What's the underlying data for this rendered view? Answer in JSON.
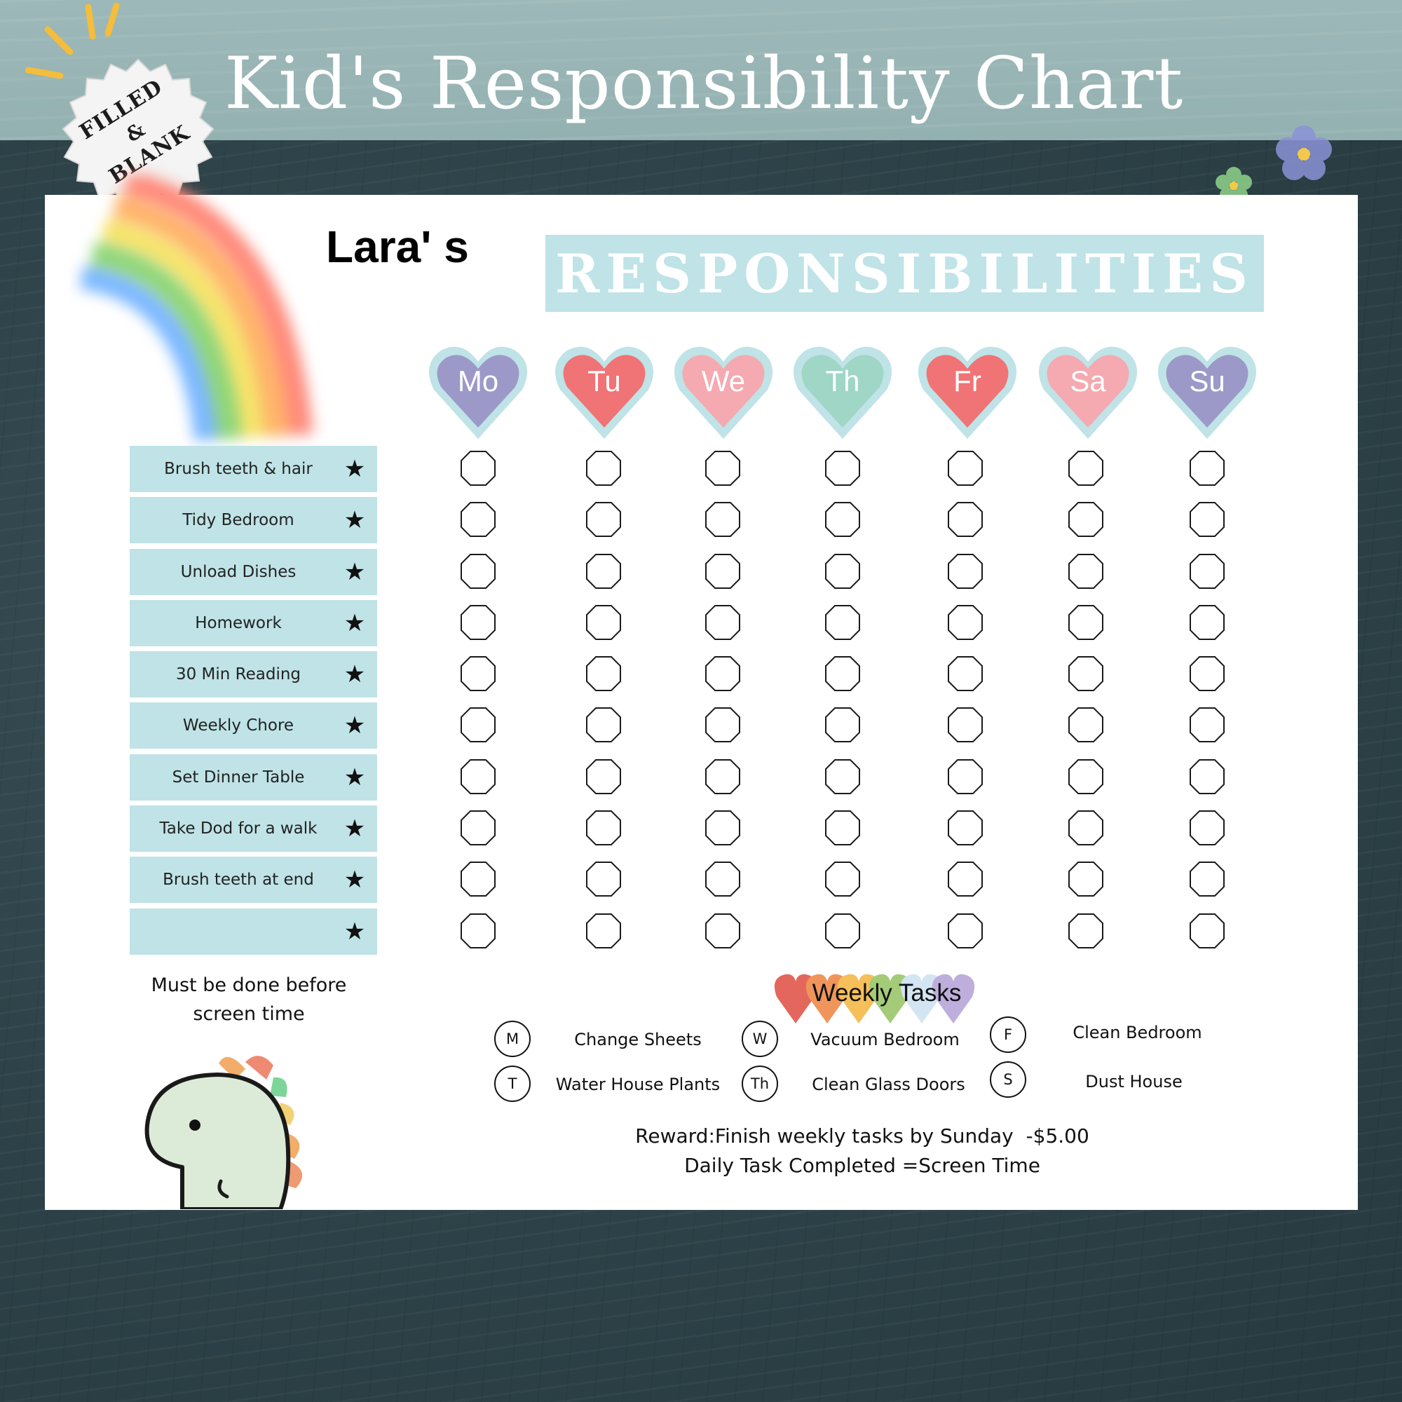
{
  "header": {
    "title": "Kid's Responsibility Chart",
    "badge_line1": "FILLED",
    "badge_line2": "&",
    "badge_line3": "BLANK"
  },
  "chart": {
    "name": "Lara' s",
    "banner": "RESPONSIBILITIES",
    "days": [
      {
        "label": "Mo",
        "color": "#9c99c9"
      },
      {
        "label": "Tu",
        "color": "#f07376"
      },
      {
        "label": "We",
        "color": "#f5a9b0"
      },
      {
        "label": "Th",
        "color": "#9fd6c6"
      },
      {
        "label": "Fr",
        "color": "#f07376"
      },
      {
        "label": "Sa",
        "color": "#f5a9b0"
      },
      {
        "label": "Su",
        "color": "#9c99c9"
      }
    ],
    "heart_outline_color": "#bfe3e6",
    "tasks": [
      "Brush teeth & hair",
      "Tidy Bedroom",
      "Unload Dishes",
      "Homework",
      "30 Min Reading",
      "Weekly Chore",
      "Set Dinner Table",
      "Take Dod for a walk",
      "Brush teeth at end",
      ""
    ],
    "star_symbol": "★",
    "note": "Must be done before screen time"
  },
  "weekly": {
    "title": "Weekly Tasks",
    "items": [
      {
        "day": "M",
        "task": "Change Sheets"
      },
      {
        "day": "T",
        "task": "Water House Plants"
      },
      {
        "day": "W",
        "task": "Vacuum Bedroom"
      },
      {
        "day": "Th",
        "task": "Clean Glass Doors"
      },
      {
        "day": "F",
        "task": "Clean Bedroom"
      },
      {
        "day": "S",
        "task": "Dust House"
      }
    ],
    "reward_line1": "Reward:Finish weekly tasks by Sunday  -$5.00",
    "reward_line2": "Daily Task Completed =Screen Time"
  }
}
